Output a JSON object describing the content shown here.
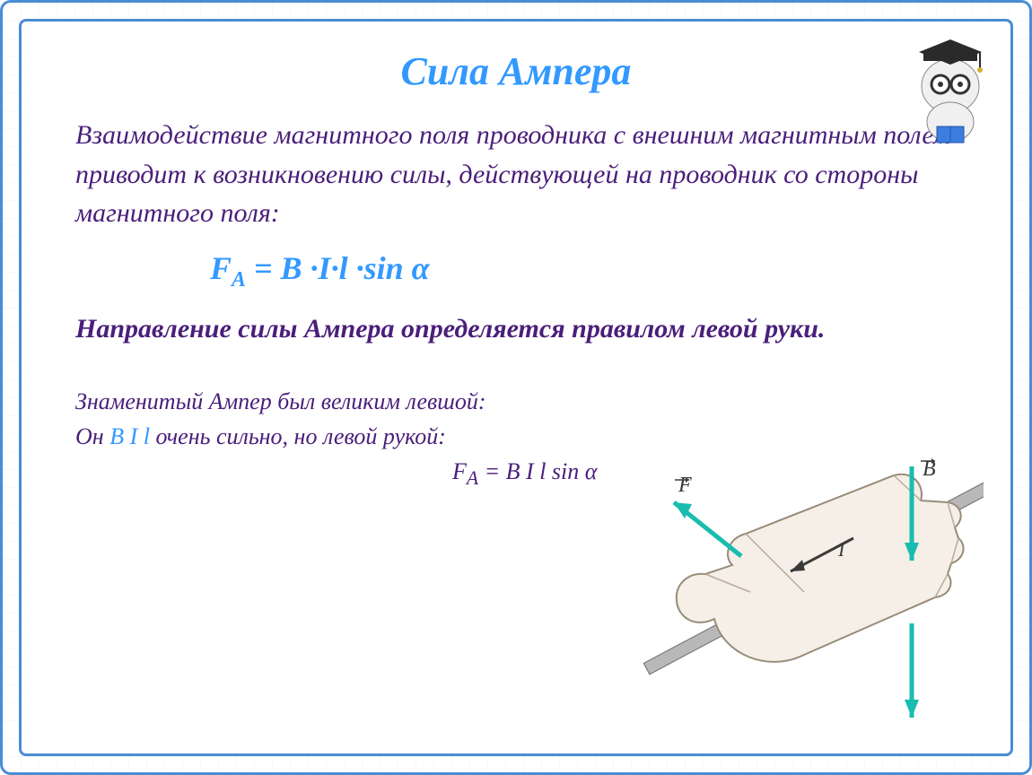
{
  "title": "Сила Ампера",
  "paragraph": "Взаимодействие магнитного поля проводника с внешним магнитным полем приводит к возникновению силы, действующей на проводник со стороны магнитного поля:",
  "formula_html": "F<sub>A</sub> = B ·I·l ·sin α",
  "rule_text": "Направление силы Ампера определяется правилом левой руки.",
  "mnemonic_line1": "Знаменитый Ампер был великим левшой:",
  "mnemonic_line2_prefix": "Он  ",
  "mnemonic_line2_blue": "B I l",
  "mnemonic_line2_suffix": "  очень сильно, но левой рукой:",
  "mnemonic_formula": "F<sub>A</sub> = B I l sin α",
  "colors": {
    "frame": "#4a8dd4",
    "title": "#3399ff",
    "body_text": "#4a1e7a",
    "formula": "#3399ff",
    "grid": "#b4d2f0"
  },
  "diagram": {
    "vectors": {
      "F": {
        "label": "F",
        "color": "#18bdb0"
      },
      "B": {
        "label": "B",
        "color": "#18bdb0"
      },
      "I": {
        "label": "I",
        "color": "#3a3a3a"
      }
    },
    "hand_fill": "#f5efe8",
    "hand_stroke": "#888070",
    "conductor_color": "#6b6b6b"
  },
  "mascot": {
    "cap_color": "#2a2a2a",
    "body_color": "#e8e8e8",
    "glasses_color": "#333333",
    "book_color": "#3d7de0"
  }
}
